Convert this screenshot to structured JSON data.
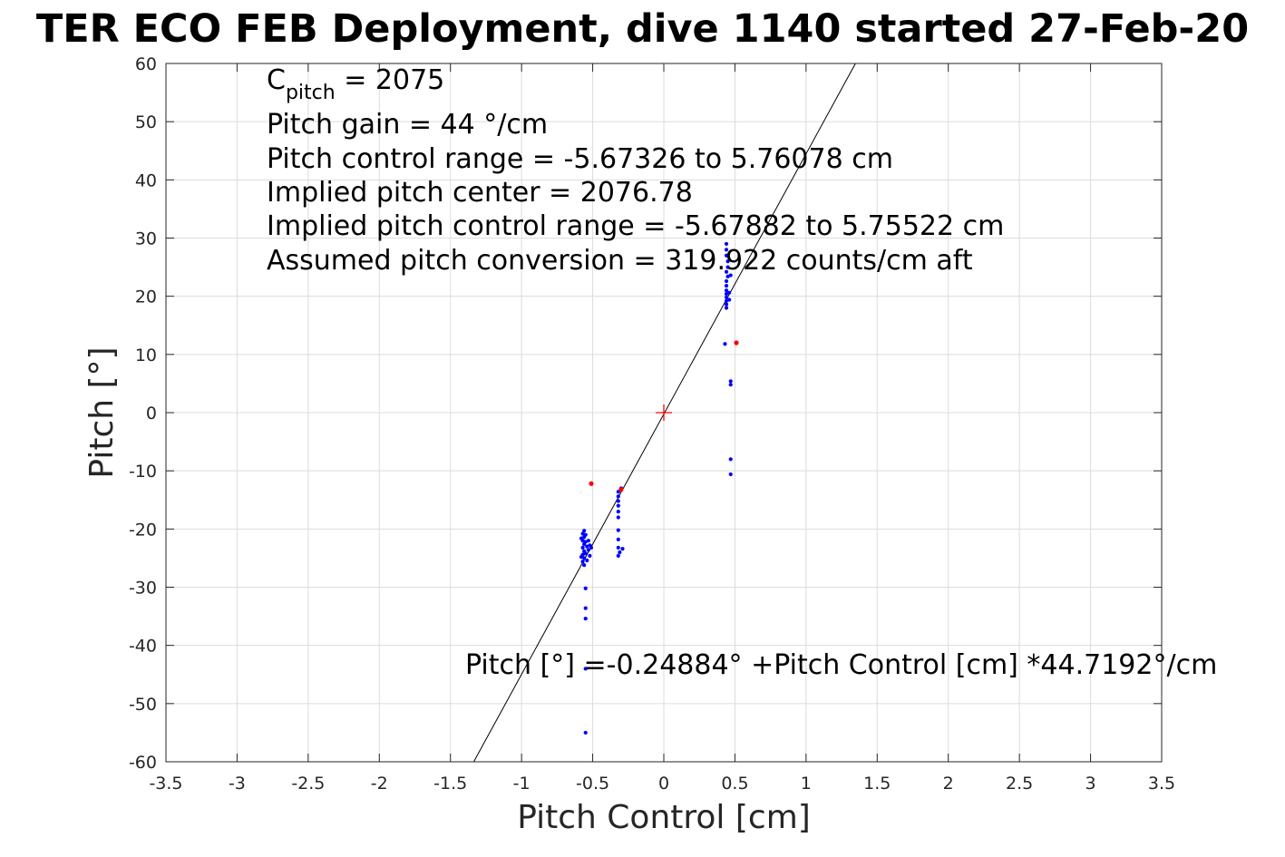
{
  "chart_data": {
    "type": "scatter",
    "title": "TER ECO FEB Deployment, dive 1140 started 27-Feb-20",
    "xlabel": "Pitch Control [cm]",
    "ylabel": "Pitch [°]",
    "xlim": [
      -3.5,
      3.5
    ],
    "ylim": [
      -60,
      60
    ],
    "grid": true,
    "x_ticks": [
      -3.5,
      -3,
      -2.5,
      -2,
      -1.5,
      -1,
      -0.5,
      0,
      0.5,
      1,
      1.5,
      2,
      2.5,
      3,
      3.5
    ],
    "x_tick_labels": [
      "-3.5",
      "-3",
      "-2.5",
      "-2",
      "-1.5",
      "-1",
      "-0.5",
      "0",
      "0.5",
      "1",
      "1.5",
      "2",
      "2.5",
      "3",
      "3.5"
    ],
    "y_ticks": [
      60,
      50,
      40,
      30,
      20,
      10,
      0,
      -10,
      -20,
      -30,
      -40,
      -50,
      -60
    ],
    "y_tick_labels": [
      "60",
      "50",
      "40",
      "30",
      "20",
      "10",
      "0",
      "-10",
      "-20",
      "-30",
      "-40",
      "-50",
      "-60"
    ],
    "annotations": {
      "c_pitch_label": "C",
      "c_pitch_sub": "pitch",
      "c_pitch_value": " = 2075",
      "lines": [
        "Pitch gain = 44 °/cm",
        "Pitch control range = -5.67326 to 5.76078 cm",
        "Implied pitch center = 2076.78",
        "Implied pitch control range = -5.67882 to 5.75522 cm",
        "Assumed pitch conversion = 319.922 counts/cm aft"
      ],
      "fit_equation": "Pitch [°] =-0.24884° +Pitch Control [cm] *44.7192°/cm"
    },
    "fit_line": {
      "intercept": -0.24884,
      "slope": 44.7192,
      "color": "#000000"
    },
    "center_marker": {
      "x": 0,
      "y": 0,
      "color": "#ff0000"
    },
    "series": [
      {
        "color": "#0000ff",
        "points": [
          [
            -0.56,
            -20.3
          ],
          [
            -0.57,
            -20.8
          ],
          [
            -0.56,
            -21.4
          ],
          [
            -0.57,
            -22.0
          ],
          [
            -0.56,
            -22.6
          ],
          [
            -0.57,
            -23.2
          ],
          [
            -0.56,
            -23.8
          ],
          [
            -0.57,
            -24.4
          ],
          [
            -0.56,
            -25.0
          ],
          [
            -0.57,
            -25.6
          ],
          [
            -0.56,
            -26.2
          ],
          [
            -0.55,
            -21.0
          ],
          [
            -0.55,
            -22.2
          ],
          [
            -0.54,
            -23.0
          ],
          [
            -0.55,
            -24.2
          ],
          [
            -0.53,
            -22.0
          ],
          [
            -0.53,
            -23.6
          ],
          [
            -0.52,
            -22.8
          ],
          [
            -0.52,
            -24.6
          ],
          [
            -0.51,
            -23.2
          ],
          [
            -0.54,
            -25.4
          ],
          [
            -0.58,
            -24.8
          ],
          [
            -0.58,
            -21.6
          ],
          [
            -0.55,
            -30.2
          ],
          [
            -0.55,
            -33.6
          ],
          [
            -0.55,
            -35.4
          ],
          [
            -0.55,
            -44.0
          ],
          [
            -0.55,
            -55.0
          ],
          [
            -0.32,
            -13.6
          ],
          [
            -0.32,
            -14.4
          ],
          [
            -0.32,
            -15.2
          ],
          [
            -0.32,
            -16.0
          ],
          [
            -0.32,
            -17.0
          ],
          [
            -0.32,
            -18.0
          ],
          [
            -0.32,
            -20.2
          ],
          [
            -0.32,
            -21.8
          ],
          [
            -0.32,
            -23.2
          ],
          [
            -0.31,
            -24.0
          ],
          [
            -0.32,
            -24.6
          ],
          [
            -0.29,
            -23.4
          ],
          [
            -0.3,
            -13.0
          ],
          [
            0.44,
            18.0
          ],
          [
            0.44,
            18.6
          ],
          [
            0.44,
            19.2
          ],
          [
            0.44,
            19.8
          ],
          [
            0.44,
            20.4
          ],
          [
            0.44,
            21.0
          ],
          [
            0.44,
            21.8
          ],
          [
            0.44,
            22.6
          ],
          [
            0.45,
            23.4
          ],
          [
            0.44,
            24.2
          ],
          [
            0.45,
            25.0
          ],
          [
            0.45,
            26.0
          ],
          [
            0.44,
            27.0
          ],
          [
            0.44,
            28.0
          ],
          [
            0.44,
            29.0
          ],
          [
            0.46,
            19.4
          ],
          [
            0.46,
            20.6
          ],
          [
            0.47,
            23.6
          ],
          [
            0.43,
            11.8
          ],
          [
            0.47,
            5.4
          ],
          [
            0.47,
            4.8
          ],
          [
            0.47,
            -8.0
          ],
          [
            0.47,
            -10.6
          ]
        ]
      },
      {
        "color": "#ff0000",
        "points": [
          [
            -0.51,
            -12.2
          ],
          [
            -0.3,
            -13.2
          ],
          [
            0.51,
            12.0
          ]
        ]
      }
    ]
  }
}
